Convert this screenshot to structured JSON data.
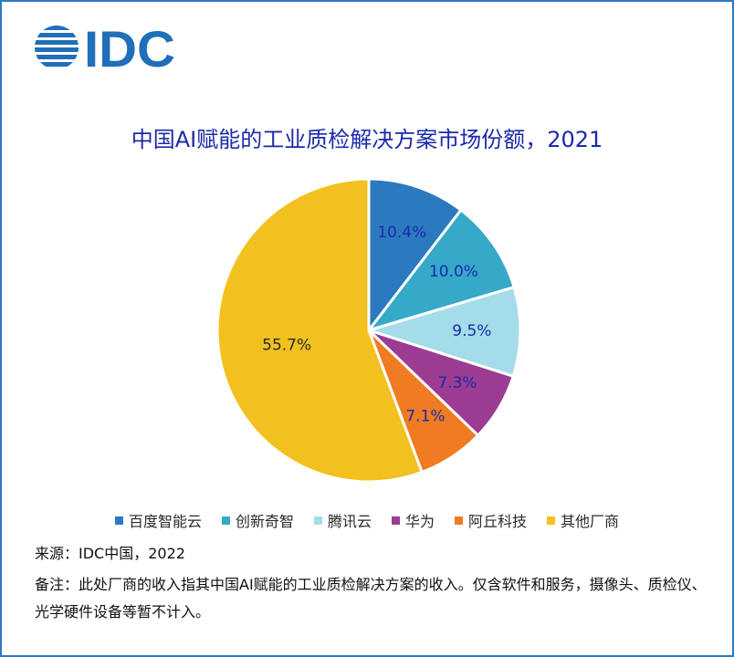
{
  "logo": {
    "text": "IDC",
    "color": "#1f6fb9"
  },
  "title": "中国AI赋能的工业质检解决方案市场份额，2021",
  "chart_data": {
    "type": "pie",
    "title": "中国AI赋能的工业质检解决方案市场份额，2021",
    "legend_position": "bottom",
    "slices": [
      {
        "label": "百度智能云",
        "value": 10.4,
        "display": "10.4%",
        "color": "#2b7abf",
        "label_color": "#1c2aa8"
      },
      {
        "label": "创新奇智",
        "value": 10.0,
        "display": "10.0%",
        "color": "#36a9c9",
        "label_color": "#1c2aa8"
      },
      {
        "label": "腾讯云",
        "value": 9.5,
        "display": "9.5%",
        "color": "#a5dce9",
        "label_color": "#1c2aa8"
      },
      {
        "label": "华为",
        "value": 7.3,
        "display": "7.3%",
        "color": "#9b3c92",
        "label_color": "#1c2aa8"
      },
      {
        "label": "阿丘科技",
        "value": 7.1,
        "display": "7.1%",
        "color": "#f07b23",
        "label_color": "#1c2aa8"
      },
      {
        "label": "其他厂商",
        "value": 55.7,
        "display": "55.7%",
        "color": "#f3c11f",
        "label_color": "#2a2a2a"
      }
    ]
  },
  "source": "来源：IDC中国，2022",
  "note": "备注：此处厂商的收入指其中国AI赋能的工业质检解决方案的收入。仅含软件和服务，摄像头、质检仪、光学硬件设备等暂不计入。"
}
